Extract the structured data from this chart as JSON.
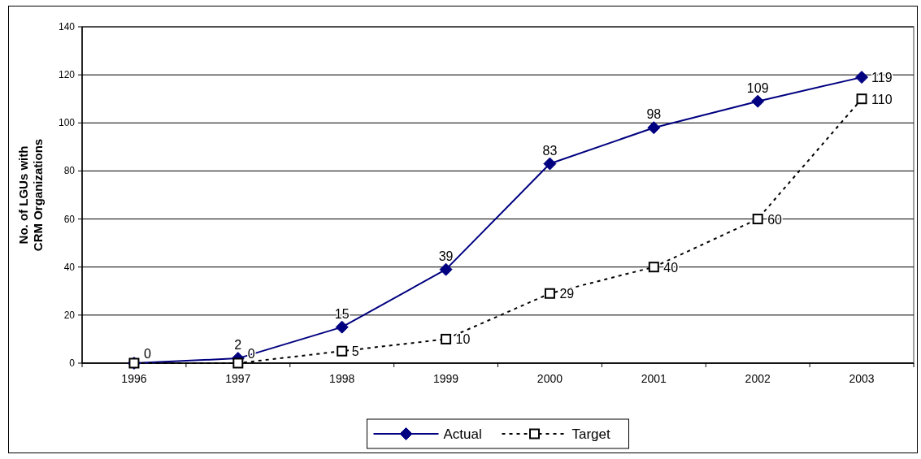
{
  "chart_data": {
    "type": "line",
    "ylabel": "No. of LGUs with\nCRM Organizations",
    "categories": [
      "1996",
      "1997",
      "1998",
      "1999",
      "2000",
      "2001",
      "2002",
      "2003"
    ],
    "series": [
      {
        "name": "Actual",
        "color": "#000080",
        "values": [
          0,
          2,
          15,
          39,
          83,
          98,
          109,
          119
        ],
        "value_labels": [
          null,
          "2",
          "15",
          "39",
          "83",
          "98",
          "109",
          "119"
        ],
        "marker": "diamond",
        "line_style": "solid"
      },
      {
        "name": "Target",
        "color": "#000000",
        "values": [
          0,
          0,
          5,
          10,
          29,
          40,
          60,
          110
        ],
        "value_labels": [
          "0",
          "0",
          "5",
          "10",
          "29",
          "40",
          "60",
          "110"
        ],
        "marker": "square",
        "line_style": "dashed"
      }
    ],
    "ylim": [
      0,
      140
    ],
    "yticks": [
      0,
      20,
      40,
      60,
      80,
      100,
      120,
      140
    ],
    "grid": "y",
    "legend": "bottom"
  }
}
